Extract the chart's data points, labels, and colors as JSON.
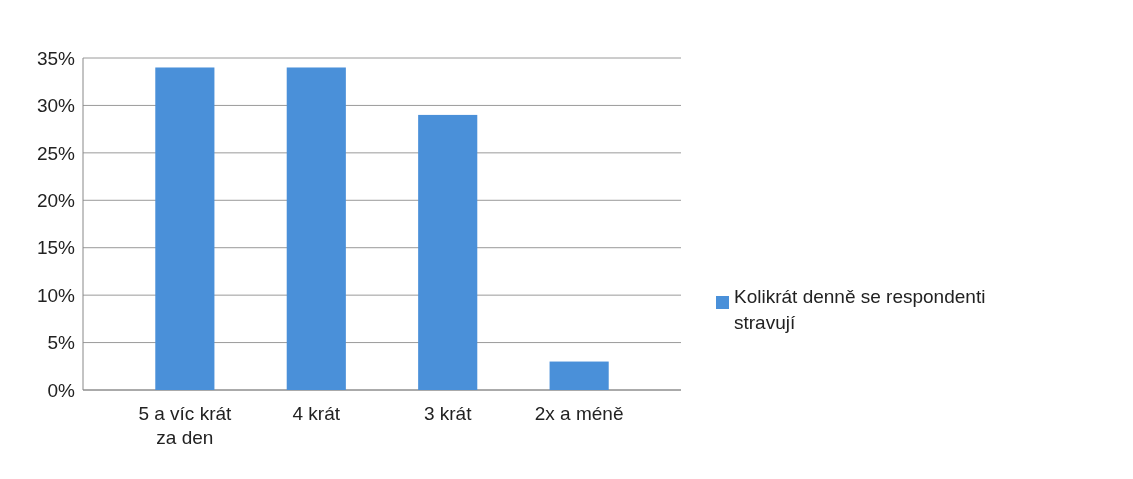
{
  "chart_data": {
    "type": "bar",
    "categories": [
      "5 a víc krát za den",
      "4 krát",
      "3 krát",
      "2x a méně"
    ],
    "series": [
      {
        "name": "Kolikrát denně se respondenti stravují",
        "color": "#4a90d9",
        "values": [
          34,
          34,
          29,
          3
        ]
      }
    ],
    "ylim": [
      0,
      35
    ],
    "yticks": [
      {
        "value": 0,
        "label": "0%"
      },
      {
        "value": 5,
        "label": "5%"
      },
      {
        "value": 10,
        "label": "10%"
      },
      {
        "value": 15,
        "label": "15%"
      },
      {
        "value": 20,
        "label": "20%"
      },
      {
        "value": 25,
        "label": "25%"
      },
      {
        "value": 30,
        "label": "30%"
      },
      {
        "value": 35,
        "label": "35%"
      }
    ],
    "grid": "y",
    "legend": "right"
  }
}
